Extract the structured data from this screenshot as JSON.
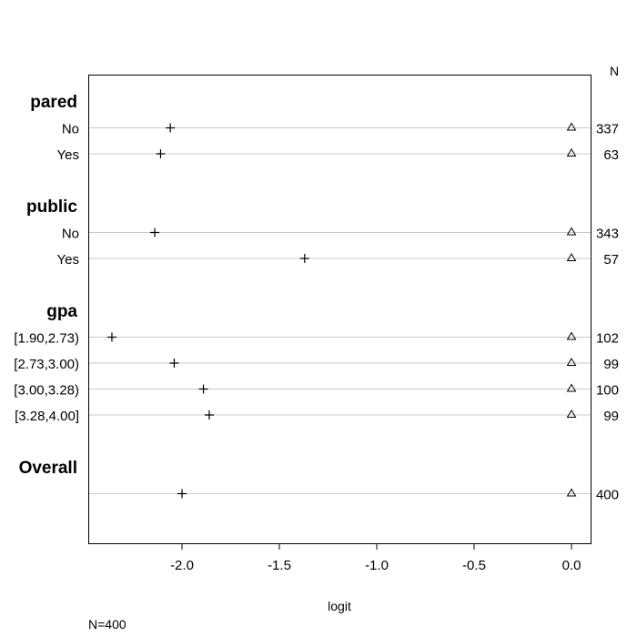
{
  "chart_data": {
    "type": "dotplot",
    "xlabel": "logit",
    "n_header": "N",
    "footer": "N=400",
    "xlim": [
      -2.45,
      0.1
    ],
    "xticks": [
      -2.0,
      -1.5,
      -1.0,
      -0.5,
      0.0
    ],
    "xtick_labels": [
      "-2.0",
      "-1.5",
      "-1.0",
      "-0.5",
      "0.0"
    ],
    "marker_series": [
      {
        "symbol": "plus"
      },
      {
        "symbol": "triangle"
      }
    ],
    "groups": [
      {
        "name": "pared",
        "levels": [
          {
            "label": "No",
            "plus": -2.06,
            "triangle": 0.0,
            "n": "337"
          },
          {
            "label": "Yes",
            "plus": -2.11,
            "triangle": 0.0,
            "n": "63"
          }
        ]
      },
      {
        "name": "public",
        "levels": [
          {
            "label": "No",
            "plus": -2.14,
            "triangle": 0.0,
            "n": "343"
          },
          {
            "label": "Yes",
            "plus": -1.37,
            "triangle": 0.0,
            "n": "57"
          }
        ]
      },
      {
        "name": "gpa",
        "levels": [
          {
            "label": "[1.90,2.73)",
            "plus": -2.36,
            "triangle": 0.0,
            "n": "102"
          },
          {
            "label": "[2.73,3.00)",
            "plus": -2.04,
            "triangle": 0.0,
            "n": "99"
          },
          {
            "label": "[3.00,3.28)",
            "plus": -1.89,
            "triangle": 0.0,
            "n": "100"
          },
          {
            "label": "[3.28,4.00]",
            "plus": -1.86,
            "triangle": 0.0,
            "n": "99"
          }
        ]
      },
      {
        "name": "Overall",
        "levels": [
          {
            "label": "",
            "plus": -2.0,
            "triangle": 0.0,
            "n": "400"
          }
        ]
      }
    ]
  }
}
